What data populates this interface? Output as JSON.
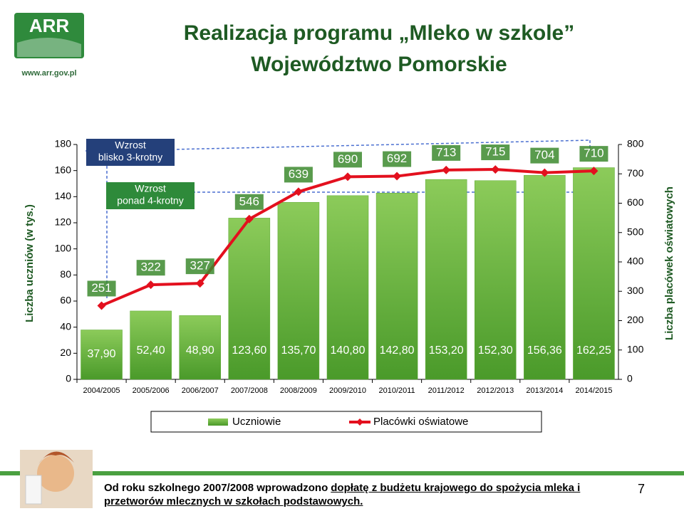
{
  "logo": {
    "name": "ARR",
    "url": "www.arr.gov.pl"
  },
  "title": "Realizacja programu „Mleko w szkole”",
  "subtitle": "Województwo Pomorskie",
  "chart_data": {
    "type": "bar",
    "categories": [
      "2004/2005",
      "2005/2006",
      "2006/2007",
      "2007/2008",
      "2008/2009",
      "2009/2010",
      "2010/2011",
      "2011/2012",
      "2012/2013",
      "2013/2014",
      "2014/2015"
    ],
    "series": [
      {
        "name": "Uczniowie",
        "type": "bar",
        "color": "#5aa832",
        "axis": "y",
        "values": [
          37.9,
          52.4,
          48.9,
          123.6,
          135.7,
          140.8,
          142.8,
          153.2,
          152.3,
          156.36,
          162.25
        ],
        "value_labels": [
          "37,90",
          "52,40",
          "48,90",
          "123,60",
          "135,70",
          "140,80",
          "142,80",
          "153,20",
          "152,30",
          "156,36",
          "162,25"
        ]
      },
      {
        "name": "Placówki oświatowe",
        "type": "line",
        "color": "#e3101e",
        "axis": "y2",
        "values": [
          251,
          322,
          327,
          546,
          639,
          690,
          692,
          713,
          715,
          704,
          710
        ]
      }
    ],
    "y_label": "Liczba uczniów (w tys.)",
    "y2_label": "Liczba placówek oświatowych",
    "ylim": [
      0,
      180
    ],
    "yticks": [
      0,
      20,
      40,
      60,
      80,
      100,
      120,
      140,
      160,
      180
    ],
    "y2lim": [
      0,
      800
    ],
    "y2ticks": [
      0,
      100,
      200,
      300,
      400,
      500,
      600,
      700,
      800
    ],
    "grid": false,
    "annotations": [
      [
        "Wzrost",
        "blisko 3-krotny"
      ],
      [
        "Wzrost",
        "ponad 4-krotny"
      ]
    ]
  },
  "footnote": {
    "text": "Od roku szkolnego 2007/2008 wprowadzono",
    "link": "dopłatę z budżetu krajowego do spożycia mleka i przetworów mlecznych w szkołach podstawowych."
  },
  "page_number": "7"
}
